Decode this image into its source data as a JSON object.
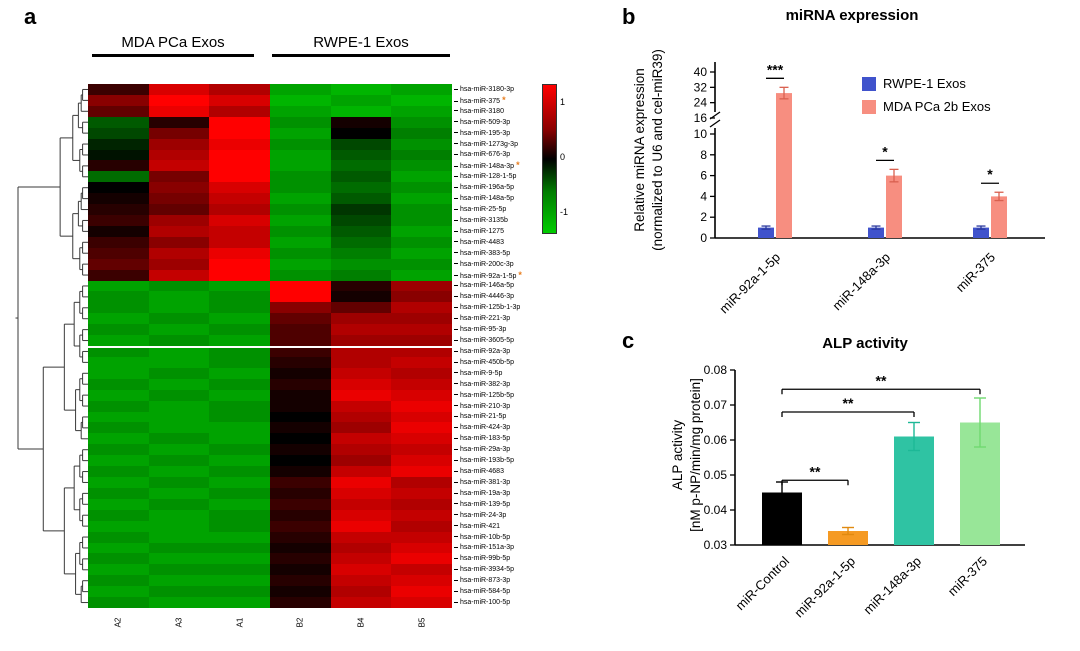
{
  "panels": {
    "a": "a",
    "b": "b",
    "c": "c"
  },
  "chart_data": [
    {
      "type": "heatmap",
      "group_labels": [
        "MDA PCa Exos",
        "RWPE-1 Exos"
      ],
      "columns": [
        "A2",
        "A3",
        "A1",
        "B2",
        "B4",
        "B5"
      ],
      "rows": [
        "hsa-miR-3180-3p",
        "hsa-miR-375",
        "hsa-miR-3180",
        "hsa-miR-509-3p",
        "hsa-miR-195-3p",
        "hsa-miR-1273g-3p",
        "hsa-miR-676-3p",
        "hsa-miR-148a-3p",
        "hsa-miR-128-1-5p",
        "hsa-miR-196a-5p",
        "hsa-miR-148a-5p",
        "hsa-miR-25-5p",
        "hsa-miR-3135b",
        "hsa-miR-1275",
        "hsa-miR-4483",
        "hsa-miR-383-5p",
        "hsa-miR-200c-3p",
        "hsa-miR-92a-1-5p",
        "hsa-miR-146a-5p",
        "hsa-miR-4446-3p",
        "hsa-miR-125b-1-3p",
        "hsa-miR-221-3p",
        "hsa-miR-95-3p",
        "hsa-miR-3605-5p",
        "hsa-miR-92a-3p",
        "hsa-miR-450b-5p",
        "hsa-miR-9-5p",
        "hsa-miR-382-3p",
        "hsa-miR-125b-5p",
        "hsa-miR-210-3p",
        "hsa-miR-21-5p",
        "hsa-miR-424-3p",
        "hsa-miR-183-5p",
        "hsa-miR-29a-3p",
        "hsa-miR-193b-5p",
        "hsa-miR-4683",
        "hsa-miR-381-3p",
        "hsa-miR-19a-3p",
        "hsa-miR-139-5p",
        "hsa-miR-24-3p",
        "hsa-miR-421",
        "hsa-miR-10b-5p",
        "hsa-miR-151a-3p",
        "hsa-miR-99b-5p",
        "hsa-miR-3934-5p",
        "hsa-miR-873-3p",
        "hsa-miR-584-5p",
        "hsa-miR-100-5p"
      ],
      "starred_rows": [
        "hsa-miR-375",
        "hsa-miR-148a-3p",
        "hsa-miR-92a-1-5p"
      ],
      "star_symbol": "*",
      "star_color": "#e87d1e",
      "colorbar_ticks": [
        "1",
        "0",
        "-1"
      ],
      "values": [
        [
          0.3,
          1.1,
          0.9,
          -0.9,
          -1.0,
          -0.9
        ],
        [
          0.7,
          1.6,
          1.1,
          -1.0,
          -0.9,
          -1.0
        ],
        [
          0.5,
          1.2,
          0.9,
          -0.9,
          -1.0,
          -0.9
        ],
        [
          -0.5,
          0.2,
          1.3,
          -0.8,
          0.1,
          -0.8
        ],
        [
          -0.4,
          0.6,
          1.5,
          -0.9,
          0.0,
          -0.7
        ],
        [
          -0.2,
          0.8,
          1.2,
          -0.8,
          -0.4,
          -0.8
        ],
        [
          -0.1,
          0.9,
          1.3,
          -0.9,
          -0.5,
          -0.7
        ],
        [
          0.2,
          1.0,
          1.5,
          -0.9,
          -0.6,
          -0.8
        ],
        [
          -0.6,
          0.6,
          1.4,
          -0.8,
          -0.5,
          -0.9
        ],
        [
          0.0,
          0.7,
          1.1,
          -0.8,
          -0.6,
          -0.8
        ],
        [
          0.1,
          0.6,
          1.0,
          -0.9,
          -0.5,
          -0.9
        ],
        [
          0.2,
          0.5,
          0.9,
          -0.8,
          -0.3,
          -0.8
        ],
        [
          0.3,
          0.8,
          1.1,
          -0.9,
          -0.4,
          -0.8
        ],
        [
          0.1,
          0.9,
          1.0,
          -0.8,
          -0.5,
          -0.9
        ],
        [
          0.3,
          0.7,
          1.0,
          -0.9,
          -0.6,
          -0.8
        ],
        [
          0.4,
          0.9,
          1.2,
          -0.8,
          -0.7,
          -0.9
        ],
        [
          0.5,
          0.8,
          1.3,
          -0.9,
          -0.8,
          -0.8
        ],
        [
          0.3,
          1.0,
          1.4,
          -0.8,
          -0.7,
          -0.9
        ],
        [
          -0.9,
          -0.8,
          -0.9,
          1.5,
          0.2,
          0.8
        ],
        [
          -0.8,
          -0.9,
          -0.8,
          1.3,
          0.1,
          0.7
        ],
        [
          -0.8,
          -0.9,
          -0.8,
          0.7,
          0.5,
          0.9
        ],
        [
          -0.9,
          -0.8,
          -0.9,
          0.5,
          0.8,
          0.8
        ],
        [
          -0.8,
          -0.9,
          -0.8,
          0.4,
          0.9,
          0.9
        ],
        [
          -0.9,
          -0.8,
          -0.9,
          0.4,
          0.8,
          0.8
        ],
        [
          -0.8,
          -0.9,
          -0.8,
          0.3,
          0.9,
          0.9
        ],
        [
          -0.9,
          -0.9,
          -0.8,
          0.2,
          0.9,
          1.0
        ],
        [
          -0.9,
          -0.8,
          -0.9,
          0.1,
          1.0,
          0.9
        ],
        [
          -0.8,
          -0.9,
          -0.8,
          0.2,
          1.1,
          1.0
        ],
        [
          -0.9,
          -0.8,
          -0.9,
          0.1,
          1.2,
          1.1
        ],
        [
          -0.8,
          -0.9,
          -0.8,
          0.1,
          1.0,
          1.2
        ],
        [
          -0.9,
          -0.9,
          -0.8,
          0.0,
          0.9,
          1.1
        ],
        [
          -0.8,
          -0.9,
          -0.9,
          0.1,
          0.8,
          1.2
        ],
        [
          -0.9,
          -0.8,
          -0.9,
          0.0,
          1.0,
          1.1
        ],
        [
          -0.8,
          -0.9,
          -0.8,
          0.1,
          0.9,
          1.0
        ],
        [
          -0.9,
          -0.8,
          -0.9,
          0.0,
          0.8,
          1.1
        ],
        [
          -0.8,
          -0.9,
          -0.8,
          0.1,
          1.0,
          1.2
        ],
        [
          -0.9,
          -0.8,
          -0.9,
          0.3,
          1.2,
          0.9
        ],
        [
          -0.8,
          -0.9,
          -0.8,
          0.2,
          1.1,
          1.0
        ],
        [
          -0.9,
          -0.8,
          -0.9,
          0.3,
          1.0,
          0.9
        ],
        [
          -0.8,
          -0.9,
          -0.8,
          0.2,
          1.1,
          1.0
        ],
        [
          -0.9,
          -0.9,
          -0.8,
          0.3,
          1.2,
          0.9
        ],
        [
          -0.8,
          -0.9,
          -0.9,
          0.2,
          1.0,
          1.0
        ],
        [
          -0.9,
          -0.8,
          -0.8,
          0.1,
          0.9,
          1.1
        ],
        [
          -0.8,
          -0.9,
          -0.9,
          0.2,
          1.0,
          1.2
        ],
        [
          -0.9,
          -0.8,
          -0.8,
          0.1,
          1.1,
          1.0
        ],
        [
          -0.8,
          -0.9,
          -0.9,
          0.2,
          1.0,
          1.1
        ],
        [
          -0.9,
          -0.8,
          -0.8,
          0.1,
          0.9,
          1.2
        ],
        [
          -0.8,
          -0.9,
          -0.9,
          0.2,
          1.0,
          1.1
        ]
      ]
    },
    {
      "type": "grouped_bar",
      "title": "miRNA expression",
      "ylabel_line1": "Relative miRNA expression",
      "ylabel_line2": "(normalized to U6 and cel-miR39)",
      "categories": [
        "miR-92a-1-5p",
        "miR-148a-3p",
        "miR-375"
      ],
      "series": [
        {
          "name": "RWPE-1 Exos",
          "color": "#4053cc",
          "error_color": "#2b3a9e",
          "values": [
            1,
            1,
            1
          ],
          "errors": [
            0.15,
            0.15,
            0.15
          ]
        },
        {
          "name": "MDA PCa 2b Exos",
          "color": "#f78e80",
          "error_color": "#d9604f",
          "values": [
            29,
            6,
            4
          ],
          "errors": [
            3,
            0.6,
            0.4
          ]
        }
      ],
      "significance": [
        "***",
        "*",
        "*"
      ],
      "axis_break": {
        "lower_range": [
          0,
          10
        ],
        "lower_ticks": [
          0,
          2,
          4,
          6,
          8,
          10
        ],
        "upper_range": [
          16,
          40
        ],
        "upper_ticks": [
          16,
          24,
          32,
          40
        ]
      },
      "legend_position": "top-right"
    },
    {
      "type": "bar",
      "title": "ALP activity",
      "ylabel_line1": "ALP activity",
      "ylabel_line2": "[nM p-NP/min/mg protein]",
      "categories": [
        "miR-Control",
        "miR-92a-1-5p",
        "miR-148a-3p",
        "miR-375"
      ],
      "values": [
        0.045,
        0.034,
        0.061,
        0.065
      ],
      "errors": [
        0.003,
        0.001,
        0.004,
        0.007
      ],
      "colors": [
        "#000000",
        "#f59a23",
        "#2fc3a3",
        "#98e698"
      ],
      "error_colors": [
        "#000000",
        "#e08a10",
        "#1db897",
        "#6fd96f"
      ],
      "ylim": [
        0.03,
        0.08
      ],
      "yticks": [
        0.03,
        0.04,
        0.05,
        0.06,
        0.07,
        0.08
      ],
      "comparisons": [
        {
          "from": 0,
          "to": 1,
          "label": "**",
          "height": 0.0485
        },
        {
          "from": 0,
          "to": 2,
          "label": "**",
          "height": 0.068
        },
        {
          "from": 0,
          "to": 3,
          "label": "**",
          "height": 0.0745
        }
      ]
    }
  ]
}
